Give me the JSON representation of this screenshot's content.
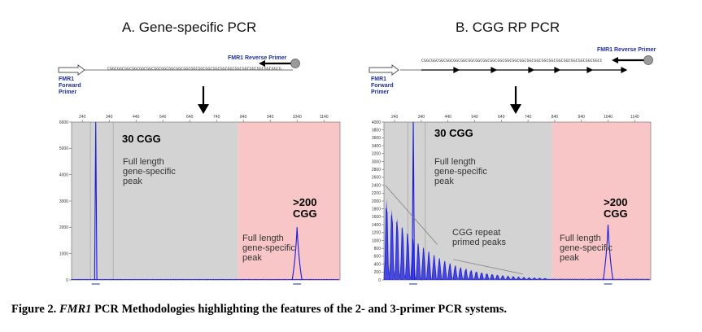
{
  "panels": [
    {
      "title": "A.  Gene-specific PCR",
      "reverse_primer": "FMR1 Reverse Primer",
      "forward_primer": "FMR1\nForward\nPrimer",
      "sequence": "CGGCGGCGGCGGCGGCGGCGGCGGCGGCGGCGGCGGCGGCGGCGGCGGCGGCGGCGGCGGCGGCGGCGGCGGCGGCGGCGG",
      "peak_small_label": "30 CGG",
      "peak_small_note": "Full length\ngene-specific\npeak",
      "peak_large_label": ">200\nCGG",
      "peak_large_note": "Full length\ngene-specific\npeak"
    },
    {
      "title": "B.  CGG RP PCR",
      "reverse_primer": "FMR1 Reverse Primer",
      "forward_primer": "FMR1\nForward\nPrimer",
      "sequence": "CGGCGGCGGCGGCGGCGGCGGCGGCGGCGGCGGCGGCGGCGGCGGCGGCGGCGGCGGCGGCGGCGGCGGCGGCGGCGGCGGCGG",
      "peak_small_label": "30 CGG",
      "peak_small_note": "Full length\ngene-specific\npeak",
      "repeat_note": "CGG repeat\nprimed peaks",
      "peak_large_label": ">200\nCGG",
      "peak_large_note": "Full length\ngene-specific\npeak"
    }
  ],
  "caption": {
    "prefix": "Figure 2.  ",
    "gene": "FMR1",
    "rest": " PCR Methodologies highlighting the features of the 2- and 3-primer PCR systems."
  },
  "chart_data": [
    {
      "type": "line",
      "title": "",
      "x_ticks": [
        "240",
        "340",
        "440",
        "540",
        "640",
        "740",
        "840",
        "940",
        "1040",
        "1140"
      ],
      "y_ticks": [
        "0",
        "1000",
        "2000",
        "3000",
        "4000",
        "5000",
        "6000"
      ],
      "ylim": [
        0,
        6000
      ],
      "series": [
        {
          "peaks": [
            {
              "x": 290,
              "height": 6000
            },
            {
              "x": 1040,
              "height": 2000
            }
          ]
        }
      ],
      "regions": [
        {
          "from": 200,
          "to": 820,
          "color": "#d3d3d3"
        },
        {
          "from": 820,
          "to": 1200,
          "color": "#f8c6c6"
        }
      ]
    },
    {
      "type": "line",
      "title": "",
      "x_ticks": [
        "240",
        "340",
        "440",
        "540",
        "640",
        "740",
        "840",
        "940",
        "1040",
        "1140"
      ],
      "y_ticks": [
        "0",
        "200",
        "400",
        "600",
        "800",
        "1000",
        "1200",
        "1400",
        "1600",
        "1800",
        "2000",
        "2200",
        "2400",
        "2600",
        "2800",
        "3000",
        "3200",
        "3400",
        "3600",
        "3800",
        "4000"
      ],
      "ylim": [
        0,
        4000
      ],
      "series": [
        {
          "peaks": [
            {
              "x": 310,
              "height": 4000
            },
            {
              "x": 1040,
              "height": 1400
            }
          ]
        }
      ],
      "regions": [
        {
          "from": 200,
          "to": 830,
          "color": "#d3d3d3"
        },
        {
          "from": 830,
          "to": 1200,
          "color": "#f8c6c6"
        }
      ]
    }
  ],
  "colors": {
    "trace": "#1a1adb",
    "grey_region": "#d3d3d3",
    "pink_region": "#f8c6c6",
    "primer": "#1f2f9a"
  },
  "icons": {
    "down_arrow": "down-arrow-icon",
    "forward_primer": "hollow-arrow-icon",
    "reverse_primer": "ball-arrow-icon"
  }
}
